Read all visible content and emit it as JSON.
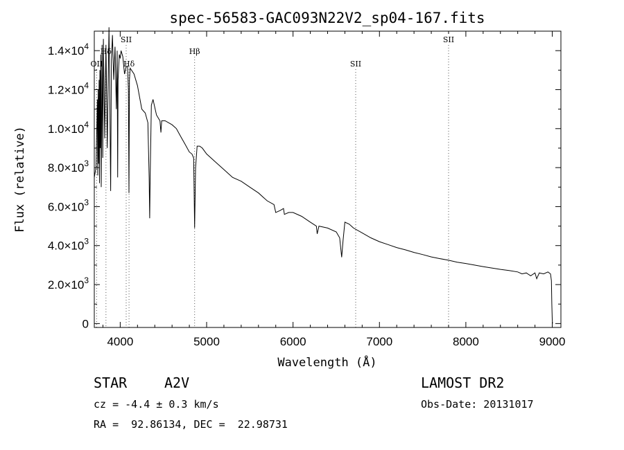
{
  "chart_data": {
    "type": "line",
    "title": "spec-56583-GAC093N22V2_sp04-167.fits",
    "xlabel": "Wavelength (Å)",
    "ylabel": "Flux (relative)",
    "xlim": [
      3700,
      9100
    ],
    "ylim": [
      -200,
      15000
    ],
    "x_ticks": [
      4000,
      5000,
      6000,
      7000,
      8000,
      9000
    ],
    "y_ticks": [
      {
        "value": 0,
        "mantissa": "0",
        "exp": ""
      },
      {
        "value": 2000,
        "mantissa": "2.0×10",
        "exp": "3"
      },
      {
        "value": 4000,
        "mantissa": "4.0×10",
        "exp": "3"
      },
      {
        "value": 6000,
        "mantissa": "6.0×10",
        "exp": "3"
      },
      {
        "value": 8000,
        "mantissa": "8.0×10",
        "exp": "3"
      },
      {
        "value": 10000,
        "mantissa": "1.0×10",
        "exp": "4"
      },
      {
        "value": 12000,
        "mantissa": "1.2×10",
        "exp": "4"
      },
      {
        "value": 14000,
        "mantissa": "1.4×10",
        "exp": "4"
      }
    ],
    "grid": false,
    "series": [
      {
        "x": [
          3700,
          3720,
          3735,
          3740,
          3745,
          3750,
          3755,
          3760,
          3765,
          3770,
          3775,
          3780,
          3790,
          3798,
          3805,
          3820,
          3835,
          3850,
          3870,
          3880,
          3889,
          3898,
          3910,
          3925,
          3940,
          3955,
          3965,
          3970,
          3975,
          3990,
          4000,
          4010,
          4030,
          4050,
          4070,
          4085,
          4095,
          4101,
          4107,
          4115,
          4130,
          4160,
          4200,
          4250,
          4290,
          4320,
          4335,
          4341,
          4347,
          4360,
          4380,
          4420,
          4460,
          4471,
          4480,
          4520,
          4600,
          4650,
          4700,
          4750,
          4800,
          4830,
          4850,
          4861,
          4872,
          4890,
          4920,
          4950,
          5000,
          5100,
          5200,
          5300,
          5400,
          5500,
          5600,
          5700,
          5780,
          5800,
          5850,
          5890,
          5900,
          5950,
          6000,
          6100,
          6200,
          6270,
          6280,
          6300,
          6400,
          6500,
          6540,
          6563,
          6580,
          6600,
          6650,
          6700,
          6800,
          6900,
          7000,
          7100,
          7200,
          7300,
          7400,
          7500,
          7600,
          7700,
          7800,
          7900,
          8000,
          8100,
          8200,
          8300,
          8400,
          8500,
          8600,
          8650,
          8700,
          8750,
          8800,
          8820,
          8850,
          8900,
          8950,
          8980,
          8990,
          8995,
          9000,
          9003
        ],
        "y": [
          7500,
          8000,
          11500,
          7600,
          12000,
          8200,
          12500,
          7200,
          13000,
          9000,
          13800,
          7000,
          14300,
          8500,
          14600,
          9500,
          14300,
          9000,
          15200,
          11500,
          6800,
          13500,
          14800,
          12500,
          14200,
          11000,
          14000,
          7500,
          12500,
          13800,
          13600,
          14000,
          13700,
          12800,
          13200,
          13200,
          12000,
          6700,
          12500,
          13100,
          13000,
          12800,
          12200,
          11000,
          10800,
          10300,
          7500,
          5400,
          7500,
          11200,
          11500,
          10700,
          10400,
          9800,
          10400,
          10400,
          10200,
          10000,
          9600,
          9200,
          8800,
          8700,
          8500,
          4900,
          8000,
          9100,
          9100,
          9000,
          8700,
          8300,
          7900,
          7500,
          7300,
          7000,
          6700,
          6300,
          6100,
          5700,
          5800,
          5900,
          5600,
          5700,
          5700,
          5500,
          5200,
          5000,
          4600,
          5000,
          4900,
          4700,
          4400,
          3400,
          4300,
          5200,
          5100,
          4900,
          4650,
          4400,
          4200,
          4050,
          3900,
          3780,
          3650,
          3540,
          3420,
          3330,
          3250,
          3150,
          3080,
          3000,
          2920,
          2850,
          2780,
          2720,
          2650,
          2550,
          2600,
          2450,
          2600,
          2300,
          2600,
          2550,
          2650,
          2550,
          2200,
          1000,
          200,
          0
        ]
      }
    ],
    "line_markers": [
      {
        "name": "OII",
        "x": 3727,
        "row": 2
      },
      {
        "name": "Hδ",
        "x": 3835,
        "row": 1
      },
      {
        "name": "SII",
        "x": 4069,
        "row": 0
      },
      {
        "name": "Hδ",
        "x": 4102,
        "row": 2
      },
      {
        "name": "Hβ",
        "x": 4861,
        "row": 1
      },
      {
        "name": "SII",
        "x": 6725,
        "row": 2
      },
      {
        "name": "SII",
        "x": 7800,
        "row": 0
      }
    ]
  },
  "info": {
    "star_label": "STAR",
    "spectral_type": "A2V",
    "cz": "cz = -4.4 ± 0.3 km/s",
    "radec": "RA =  92.86134, DEC =  22.98731",
    "survey": "LAMOST DR2",
    "obs_date": "Obs-Date: 20131017"
  }
}
